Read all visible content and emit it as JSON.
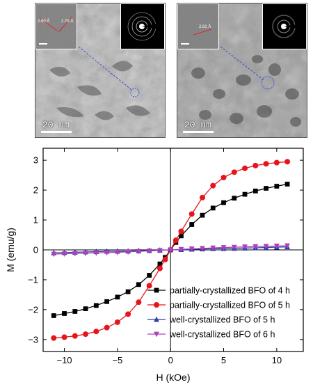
{
  "panels": {
    "left": {
      "scale_label": "20 nm",
      "lattice_labels": [
        "2.90 Å",
        "2.79 Å"
      ]
    },
    "right": {
      "scale_label": "20 nm",
      "lattice_labels": [
        "2.81 Å"
      ]
    }
  },
  "chart_data": {
    "type": "line",
    "xlabel": "H (kOe)",
    "ylabel": "M (emu/g)",
    "xlim": [
      -12,
      12.5
    ],
    "ylim": [
      -3.4,
      3.4
    ],
    "xticks": [
      -10,
      -5,
      0,
      5,
      10
    ],
    "yticks": [
      -3,
      -2,
      -1,
      0,
      1,
      2,
      3
    ],
    "grid": false,
    "legend_position": "bottom-right",
    "series": [
      {
        "name": "partially-crystallized BFO of 4 h",
        "color": "#000000",
        "marker": "square",
        "x": [
          -11,
          -10,
          -9,
          -8,
          -7,
          -6,
          -5,
          -4,
          -3,
          -2,
          -1,
          -0.5,
          0,
          0.5,
          1,
          2,
          3,
          4,
          5,
          6,
          7,
          8,
          9,
          10,
          11
        ],
        "y": [
          -2.2,
          -2.13,
          -2.06,
          -1.97,
          -1.86,
          -1.73,
          -1.58,
          -1.4,
          -1.16,
          -0.85,
          -0.47,
          -0.25,
          0.0,
          0.25,
          0.47,
          0.85,
          1.16,
          1.4,
          1.58,
          1.73,
          1.86,
          1.97,
          2.06,
          2.13,
          2.2
        ]
      },
      {
        "name": "partially-crystallized BFO of 5 h",
        "color": "#e8141c",
        "marker": "circle",
        "x": [
          -11,
          -10,
          -9,
          -8,
          -7,
          -6,
          -5,
          -4,
          -3,
          -2,
          -1,
          -0.5,
          0,
          0.5,
          1,
          2,
          3,
          4,
          5,
          6,
          7,
          8,
          9,
          10,
          11
        ],
        "y": [
          -2.95,
          -2.92,
          -2.88,
          -2.82,
          -2.73,
          -2.6,
          -2.42,
          -2.15,
          -1.75,
          -1.2,
          -0.62,
          -0.32,
          0.0,
          0.32,
          0.62,
          1.2,
          1.75,
          2.15,
          2.42,
          2.6,
          2.73,
          2.82,
          2.88,
          2.92,
          2.95
        ]
      },
      {
        "name": "well-crystallized BFO of 5 h",
        "color": "#2a3ea8",
        "marker": "triangle-up",
        "x": [
          -11,
          -10,
          -9,
          -8,
          -7,
          -6,
          -5,
          -4,
          -3,
          -2,
          -1,
          0,
          1,
          2,
          3,
          4,
          5,
          6,
          7,
          8,
          9,
          10,
          11
        ],
        "y": [
          -0.1,
          -0.09,
          -0.08,
          -0.07,
          -0.06,
          -0.05,
          -0.045,
          -0.04,
          -0.03,
          -0.02,
          -0.01,
          0.0,
          0.01,
          0.02,
          0.03,
          0.04,
          0.045,
          0.05,
          0.06,
          0.07,
          0.08,
          0.09,
          0.1
        ]
      },
      {
        "name": "well-crystallized BFO of 6 h",
        "color": "#b040b8",
        "marker": "triangle-down",
        "x": [
          -11,
          -10,
          -9,
          -8,
          -7,
          -6,
          -5,
          -4,
          -3,
          -2,
          -1,
          0,
          1,
          2,
          3,
          4,
          5,
          6,
          7,
          8,
          9,
          10,
          11
        ],
        "y": [
          -0.14,
          -0.13,
          -0.12,
          -0.11,
          -0.1,
          -0.09,
          -0.08,
          -0.065,
          -0.05,
          -0.035,
          -0.02,
          0.0,
          0.02,
          0.035,
          0.05,
          0.065,
          0.08,
          0.09,
          0.1,
          0.11,
          0.12,
          0.13,
          0.14
        ]
      }
    ]
  }
}
